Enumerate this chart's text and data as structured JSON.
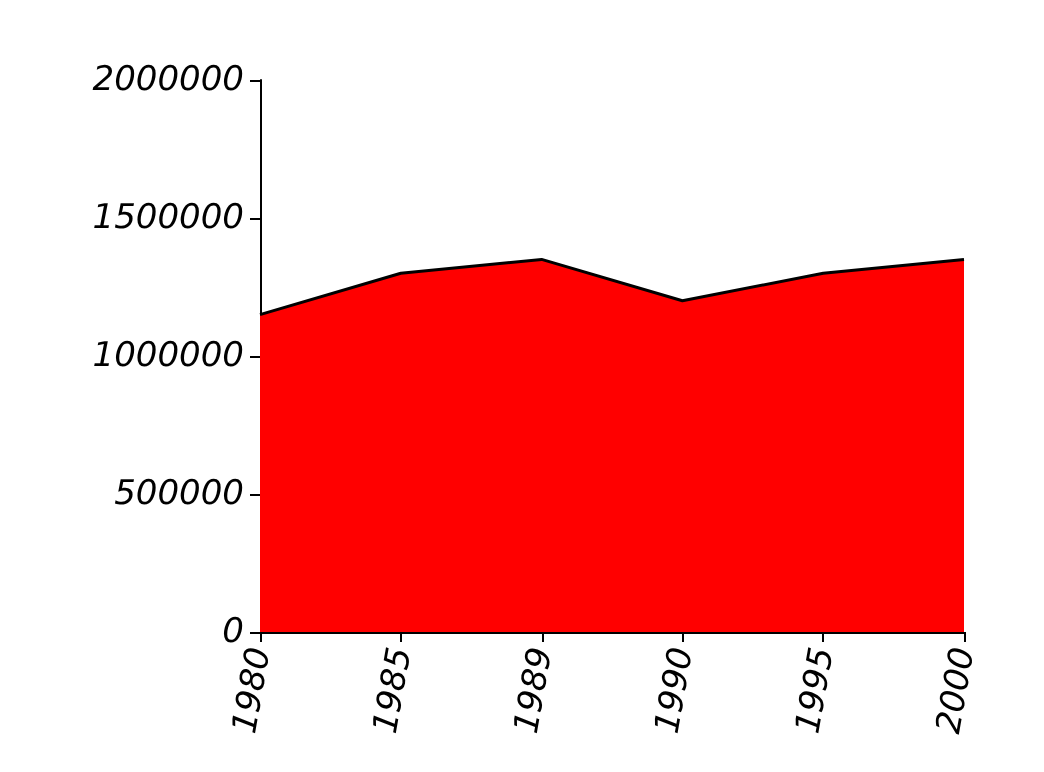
{
  "chart_data": {
    "type": "area",
    "categories": [
      "1980",
      "1985",
      "1989",
      "1990",
      "1995",
      "2000"
    ],
    "series": [
      {
        "color": "#ff0000",
        "values": [
          1150000,
          1300000,
          1350000,
          1200000,
          1300000,
          1350000
        ]
      }
    ],
    "ylim": [
      0,
      2000000
    ],
    "yticks": [
      0,
      500000,
      1000000,
      1500000,
      2000000
    ],
    "grid": false,
    "marker": "none"
  }
}
